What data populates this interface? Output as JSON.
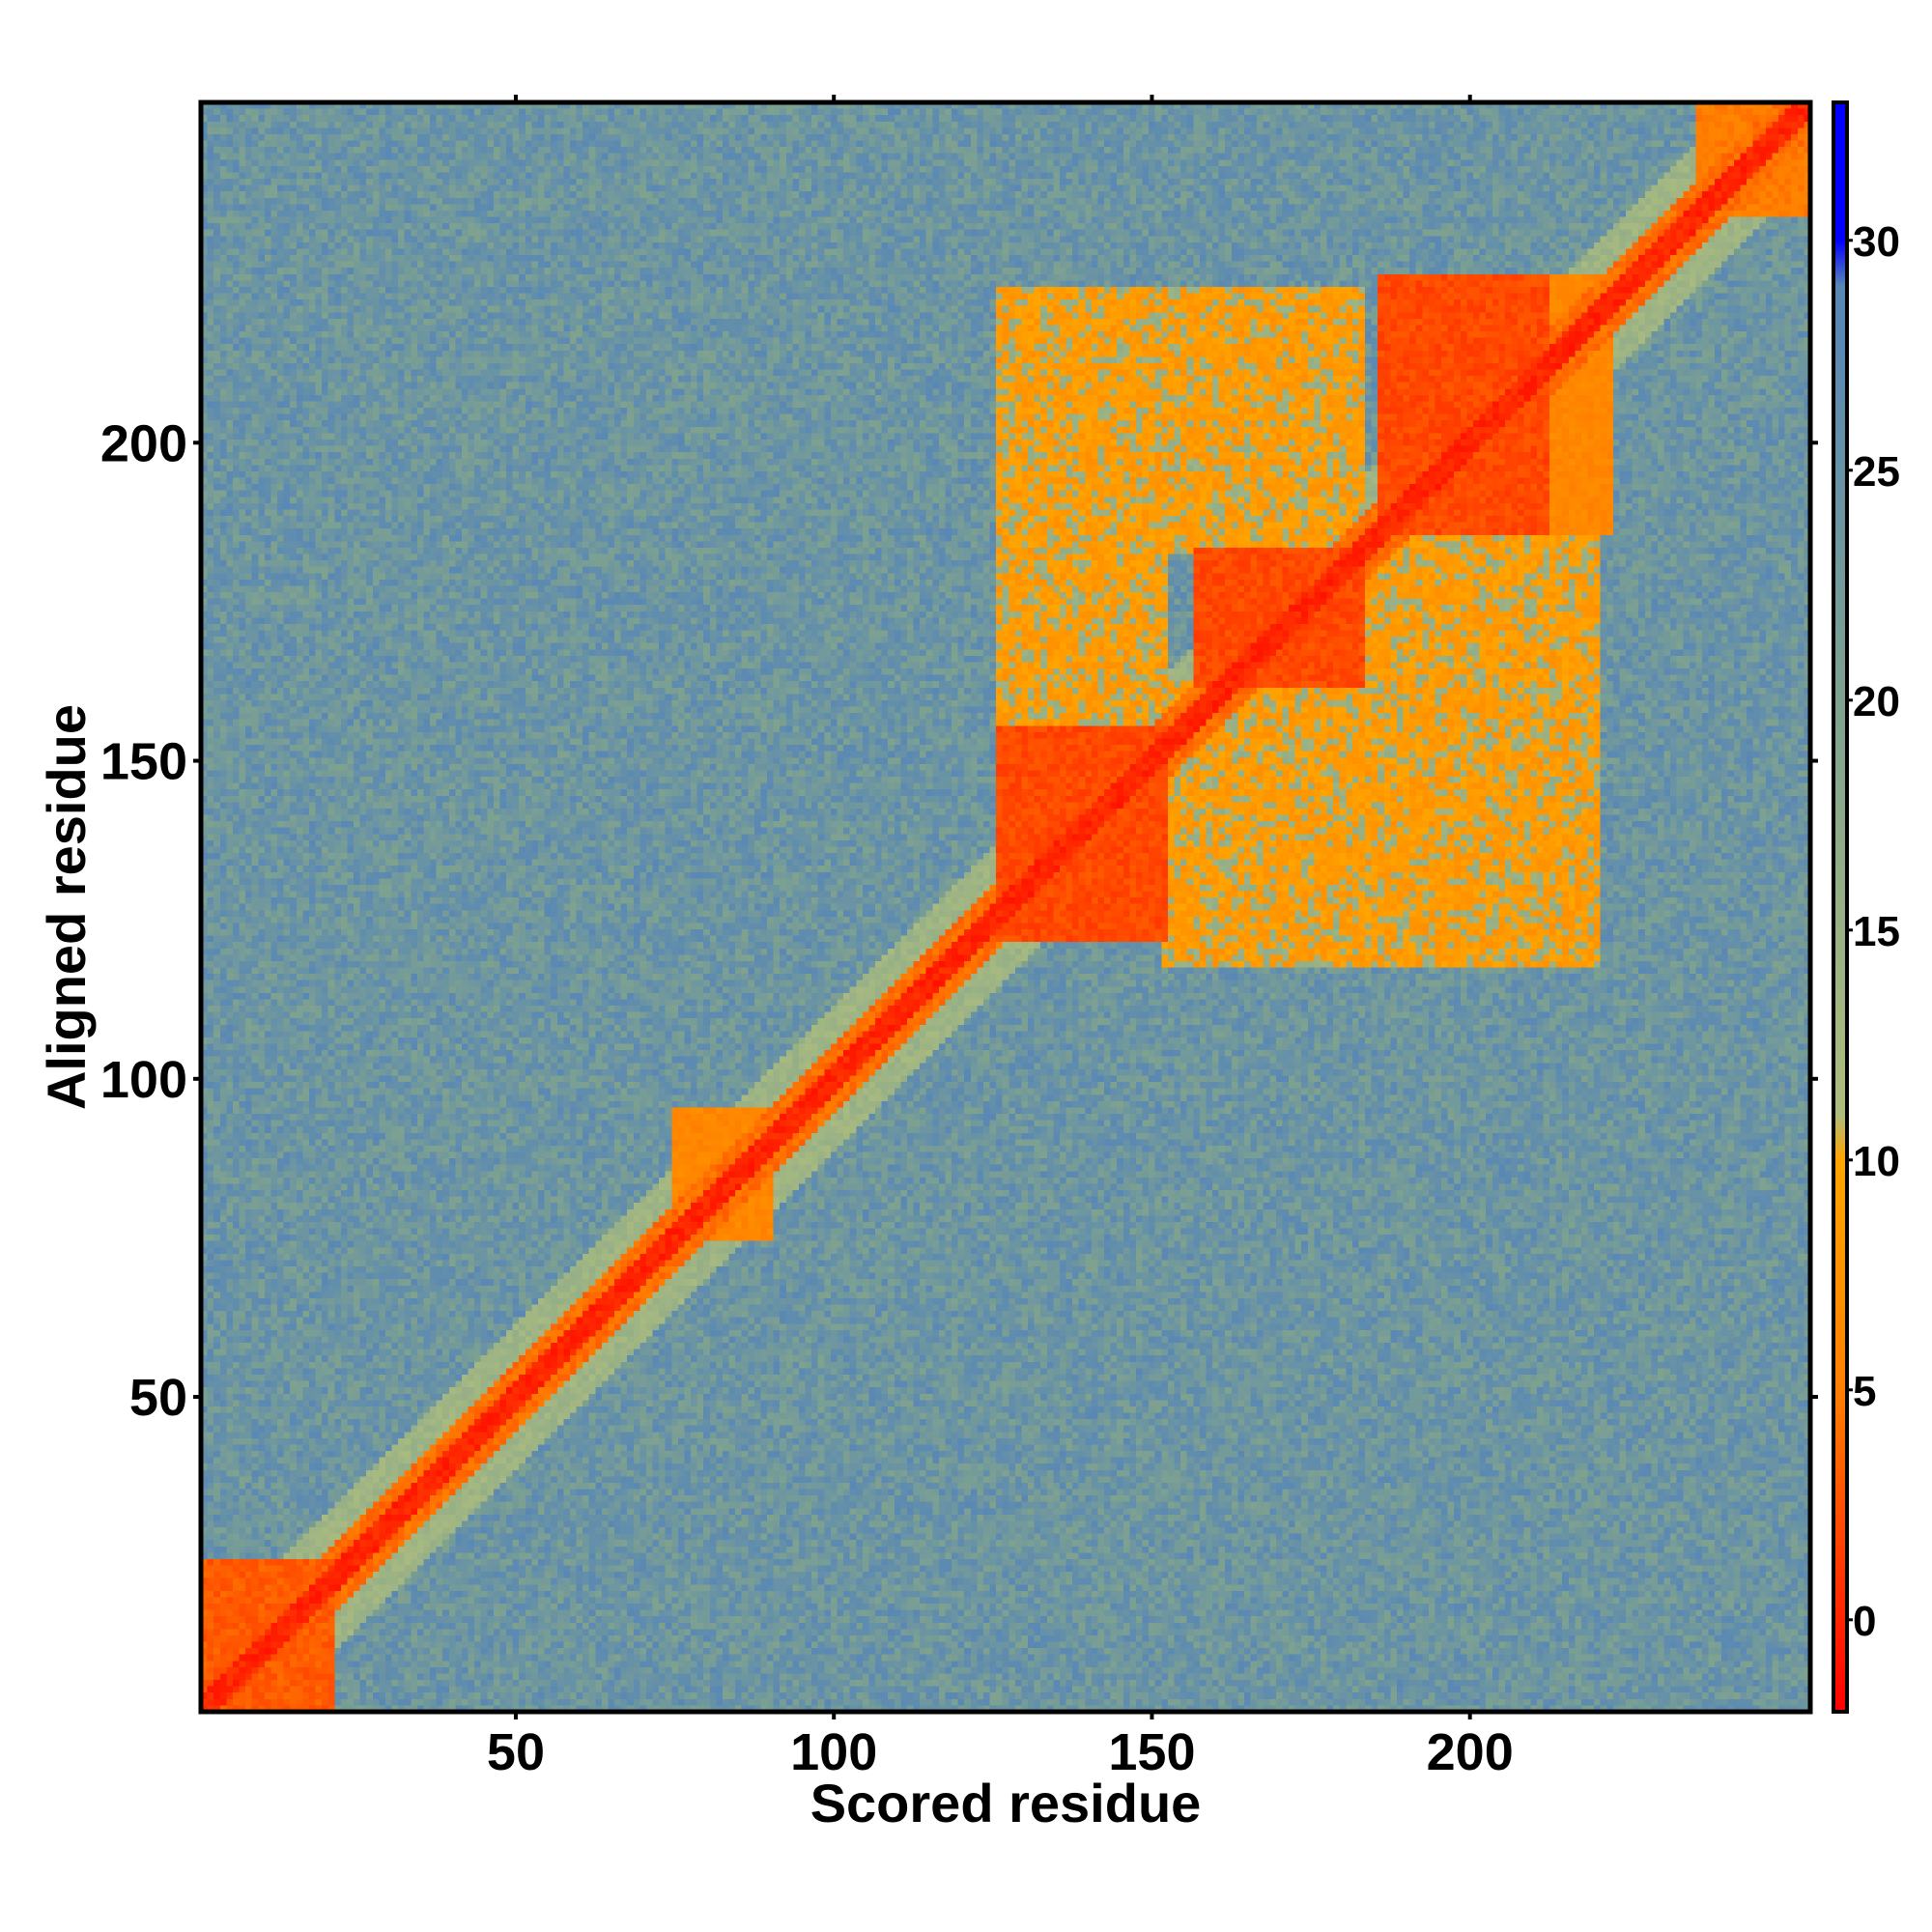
{
  "chart_data": {
    "type": "heatmap",
    "xlabel": "Scored residue",
    "ylabel": "Aligned residue",
    "x_range": [
      1,
      253
    ],
    "y_range": [
      1,
      253
    ],
    "x_ticks": [
      50,
      100,
      150,
      200
    ],
    "y_ticks": [
      50,
      100,
      150,
      200
    ],
    "colorbar": {
      "range": [
        -2,
        33
      ],
      "ticks": [
        0,
        5,
        10,
        15,
        20,
        25,
        30
      ],
      "stops": [
        {
          "value": -2,
          "color": "#ff0000"
        },
        {
          "value": 5,
          "color": "#ff7f00"
        },
        {
          "value": 10,
          "color": "#ffa500"
        },
        {
          "value": 11,
          "color": "#aebd7e"
        },
        {
          "value": 20,
          "color": "#7fa28f"
        },
        {
          "value": 28,
          "color": "#5a88b4"
        },
        {
          "value": 29,
          "color": "#5a88b4"
        },
        {
          "value": 30,
          "color": "#0000ff"
        },
        {
          "value": 33,
          "color": "#0000ff"
        }
      ]
    },
    "background_value": 26,
    "diagonal": {
      "core_value": 0,
      "core_width": 2,
      "inner_width": 5,
      "inner_value": 4,
      "halo_width": 11,
      "halo_value": 14
    },
    "blocks": [
      {
        "x": [
          1,
          21
        ],
        "y": [
          1,
          24
        ],
        "value": 3
      },
      {
        "x": [
          75,
          90
        ],
        "y": [
          75,
          95
        ],
        "value": 6
      },
      {
        "x": [
          126,
          152
        ],
        "y": [
          122,
          155
        ],
        "value": 2
      },
      {
        "x": [
          157,
          183
        ],
        "y": [
          162,
          183
        ],
        "value": 2
      },
      {
        "x": [
          186,
          212
        ],
        "y": [
          186,
          226
        ],
        "value": 2
      },
      {
        "x": [
          126,
          152
        ],
        "y": [
          155,
          224
        ],
        "value": 8
      },
      {
        "x": [
          152,
          183
        ],
        "y": [
          118,
          162
        ],
        "value": 8
      },
      {
        "x": [
          152,
          183
        ],
        "y": [
          183,
          224
        ],
        "value": 8
      },
      {
        "x": [
          183,
          220
        ],
        "y": [
          118,
          186
        ],
        "value": 8
      },
      {
        "x": [
          212,
          222
        ],
        "y": [
          186,
          226
        ],
        "value": 6
      },
      {
        "x": [
          236,
          253
        ],
        "y": [
          236,
          253
        ],
        "value": 5
      }
    ]
  }
}
